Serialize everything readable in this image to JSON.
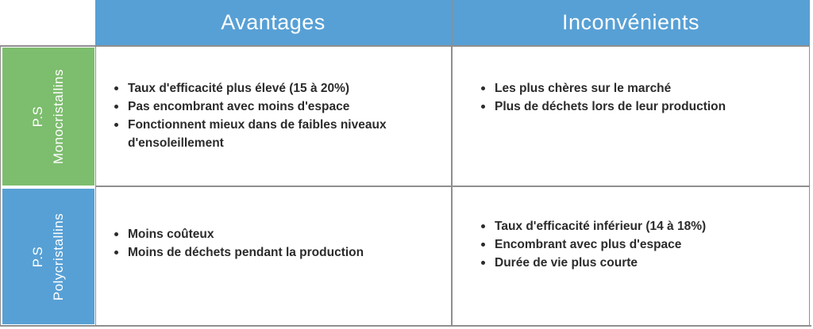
{
  "table": {
    "title_semantic": "Comparatif panneaux solaires",
    "columns": [
      {
        "key": "avantages",
        "label": "Avantages"
      },
      {
        "key": "inconvenients",
        "label": "Inconvénients"
      }
    ],
    "rows": [
      {
        "label": {
          "line1": "P.S",
          "line2": "Monocristallins"
        },
        "label_color": "#7DBD6E",
        "avantages": [
          "Taux d'efficacité plus élevé (15 à 20%)",
          "Pas encombrant avec moins d'espace",
          "Fonctionnent mieux dans de faibles niveaux d'ensoleillement"
        ],
        "inconvenients": [
          "Les plus chères sur le marché",
          "Plus de déchets  lors de leur production"
        ]
      },
      {
        "label": {
          "line1": "P.S",
          "line2": "Polycristallins"
        },
        "label_color": "#57A0D5",
        "avantages": [
          "Moins coûteux",
          "Moins de déchets pendant la production"
        ],
        "inconvenients": [
          "Taux d'efficacité inférieur (14 à 18%)",
          "Encombrant avec plus d'espace",
          "Durée de vie plus courte"
        ]
      }
    ],
    "colors": {
      "header_background": "#57A0D5",
      "row1_label_background": "#7DBD6E",
      "row2_label_background": "#57A0D5",
      "header_text": "#FFFFFF",
      "body_text": "#2B2B2B",
      "border": "#8F8F8F",
      "page_background": "#FFFFFF"
    }
  }
}
